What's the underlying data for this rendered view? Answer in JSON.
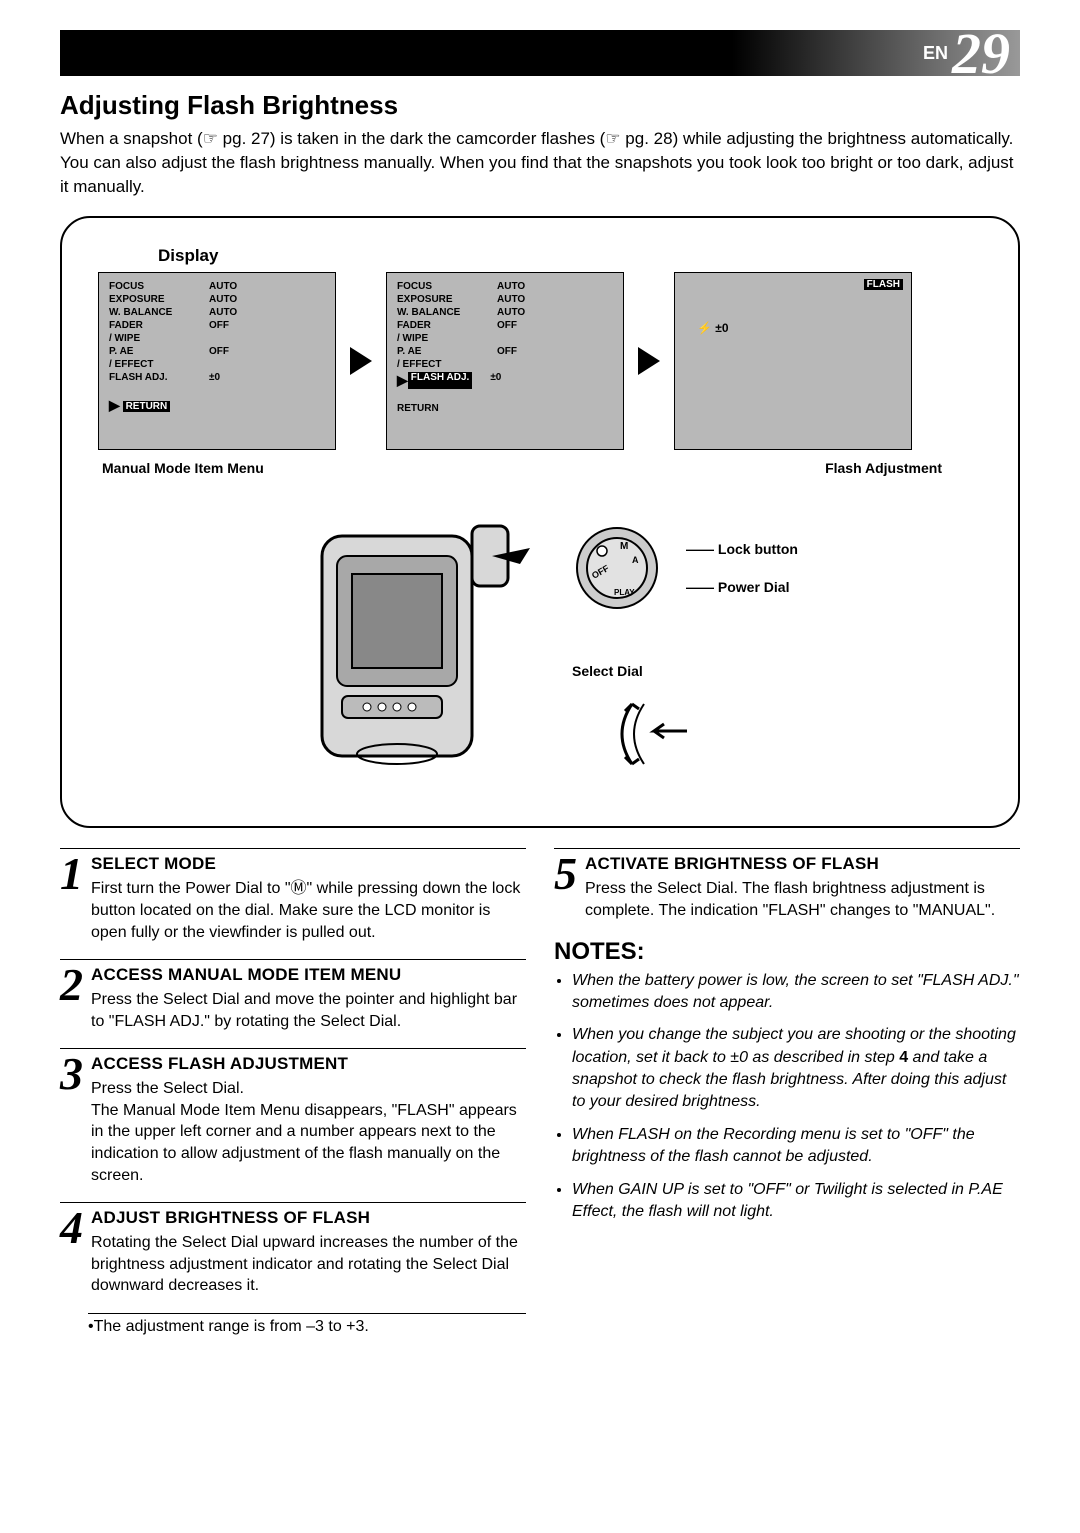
{
  "header": {
    "language_code": "EN",
    "page_number": "29"
  },
  "section_title": "Adjusting Flash Brightness",
  "intro": "When a snapshot (☞ pg. 27) is taken in the dark the camcorder flashes (☞ pg. 28) while adjusting the brightness automatically. You can also adjust the flash brightness manually. When you find that the snapshots you took look too bright or too dark, adjust it manually.",
  "diagram": {
    "display_label": "Display",
    "menu1": {
      "rows": [
        {
          "k": "FOCUS",
          "v": "AUTO"
        },
        {
          "k": "EXPOSURE",
          "v": "AUTO"
        },
        {
          "k": "W. BALANCE",
          "v": "AUTO"
        },
        {
          "k": "FADER",
          "v": "OFF"
        },
        {
          "k": "  / WIPE",
          "v": ""
        },
        {
          "k": "P. AE",
          "v": "OFF"
        },
        {
          "k": "  / EFFECT",
          "v": ""
        },
        {
          "k": "FLASH ADJ.",
          "v": "±0"
        }
      ],
      "return": "RETURN",
      "return_hl": true
    },
    "menu2": {
      "rows": [
        {
          "k": "FOCUS",
          "v": "AUTO"
        },
        {
          "k": "EXPOSURE",
          "v": "AUTO"
        },
        {
          "k": "W. BALANCE",
          "v": "AUTO"
        },
        {
          "k": "FADER",
          "v": "OFF"
        },
        {
          "k": "  / WIPE",
          "v": ""
        },
        {
          "k": "P. AE",
          "v": "OFF"
        },
        {
          "k": "  / EFFECT",
          "v": ""
        }
      ],
      "flash_hl": "FLASH ADJ.",
      "flash_val": "±0",
      "return": "RETURN"
    },
    "menu3": {
      "title": "FLASH",
      "value": "⚡ ±0"
    },
    "caption_left": "Manual Mode Item Menu",
    "caption_right": "Flash Adjustment",
    "labels": {
      "lock": "Lock button",
      "power": "Power Dial",
      "select": "Select Dial"
    }
  },
  "steps": [
    {
      "num": "1",
      "title": "SELECT MODE",
      "body": "First turn the Power Dial to \"Ⓜ\" while pressing down the lock button located on the dial. Make sure the LCD monitor is open fully or the viewfinder is pulled out."
    },
    {
      "num": "2",
      "title": "ACCESS MANUAL MODE ITEM MENU",
      "body": "Press the Select Dial and move the pointer and highlight bar to \"FLASH ADJ.\" by rotating the Select Dial."
    },
    {
      "num": "3",
      "title": "ACCESS FLASH ADJUSTMENT",
      "body": "Press the Select Dial.\nThe Manual Mode Item Menu disappears, \"FLASH\" appears in the upper left corner and a number appears next to the indication to allow adjustment of the flash manually on the screen."
    },
    {
      "num": "4",
      "title": "ADJUST BRIGHTNESS OF FLASH",
      "body": "Rotating the Select Dial upward increases the number of the brightness adjustment indicator and rotating the Select Dial downward decreases it."
    },
    {
      "num": "5",
      "title": "ACTIVATE BRIGHTNESS OF FLASH",
      "body": "Press the Select Dial. The flash brightness adjustment is complete. The indication \"FLASH\" changes to \"MANUAL\"."
    }
  ],
  "subnote": "•The adjustment range is from –3 to +3.",
  "notes_title": "NOTES:",
  "notes": [
    "When the battery power is low, the screen to set \"FLASH ADJ.\" sometimes does not appear.",
    "When you change the subject you are shooting or the shooting location, set it back to ±0 as described in step 4 and take a snapshot to check the flash brightness. After doing this adjust to your desired brightness.",
    "When FLASH on the Recording menu is set to \"OFF\" the brightness of the flash cannot be adjusted.",
    "When GAIN UP is set to \"OFF\" or Twilight is selected in P.AE Effect, the flash will not light."
  ]
}
